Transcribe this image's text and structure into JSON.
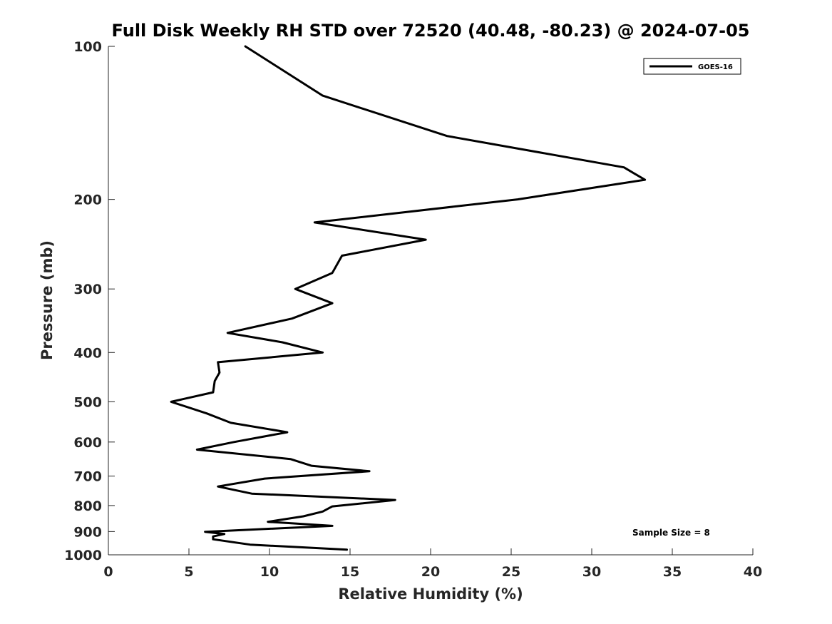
{
  "chart_data": {
    "type": "line",
    "title": "Full Disk Weekly RH STD over 72520 (40.48, -80.23) @ 2024-07-05",
    "xlabel": "Relative Humidity (%)",
    "ylabel": "Pressure (mb)",
    "xlim": [
      0,
      40
    ],
    "ylim": [
      100,
      1000
    ],
    "yscale": "log",
    "y_reversed": true,
    "xticks": [
      0,
      5,
      10,
      15,
      20,
      25,
      30,
      35,
      40
    ],
    "yticks": [
      100,
      200,
      300,
      400,
      500,
      600,
      700,
      800,
      900,
      1000
    ],
    "grid": false,
    "legend_position": "top-right",
    "annotation": "Sample Size = 8",
    "series": [
      {
        "name": "GOES-16",
        "color": "#000000",
        "x": [
          8.5,
          13.3,
          21.0,
          32.0,
          33.3,
          25.4,
          12.8,
          19.7,
          14.5,
          13.9,
          11.6,
          13.9,
          11.4,
          7.4,
          10.8,
          13.3,
          6.8,
          6.9,
          6.6,
          6.5,
          3.9,
          6.1,
          7.6,
          11.1,
          7.8,
          5.5,
          11.3,
          12.6,
          16.2,
          9.7,
          6.8,
          8.9,
          17.8,
          13.9,
          13.3,
          12.1,
          9.9,
          13.9,
          6.0,
          7.2,
          6.5,
          6.5,
          8.8,
          14.8
        ],
        "y": [
          100,
          125,
          150,
          173,
          183,
          200,
          222,
          240,
          258,
          279,
          300,
          320,
          343,
          366,
          382,
          400,
          418,
          438,
          455,
          479,
          500,
          527,
          550,
          574,
          600,
          621,
          648,
          668,
          685,
          708,
          734,
          758,
          780,
          803,
          822,
          840,
          861,
          877,
          901,
          910,
          920,
          932,
          955,
          977
        ]
      }
    ]
  }
}
